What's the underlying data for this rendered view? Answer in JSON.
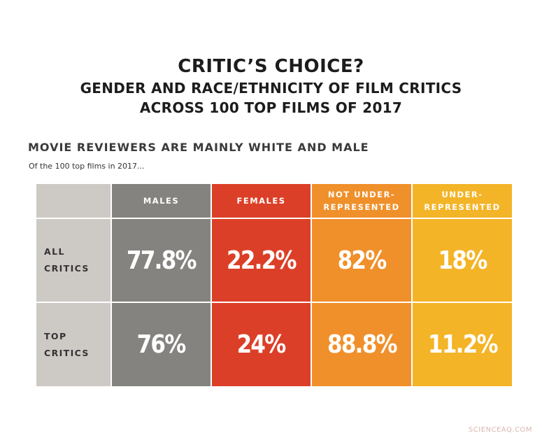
{
  "title": "CRITIC’S CHOICE?",
  "subtitle_line1": "GENDER AND RACE/ETHNICITY OF FILM CRITICS",
  "subtitle_line2": "ACROSS 100 TOP FILMS OF 2017",
  "section_heading": "MOVIE REVIEWERS ARE MAINLY WHITE AND MALE",
  "caption": "Of the 100 top films in 2017...",
  "watermark": "SCIENCEAQ.COM",
  "colors": {
    "label_bg": "#cdc9c5",
    "males": "#858380",
    "females": "#dc3f27",
    "not_underrepresented": "#f0902a",
    "underrepresented": "#f4b427"
  },
  "chart_data": {
    "type": "table",
    "title": "CRITIC’S CHOICE?",
    "columns": [
      {
        "key": "males",
        "line1": "MALES",
        "line2": ""
      },
      {
        "key": "females",
        "line1": "FEMALES",
        "line2": ""
      },
      {
        "key": "not_underrepresented",
        "line1": "NOT UNDER-",
        "line2": "REPRESENTED"
      },
      {
        "key": "underrepresented",
        "line1": "UNDER-",
        "line2": "REPRESENTED"
      }
    ],
    "rows": [
      {
        "line1": "ALL",
        "line2": "CRITICS",
        "values": [
          "77.8%",
          "22.2%",
          "82%",
          "18%"
        ]
      },
      {
        "line1": "TOP",
        "line2": "CRITICS",
        "values": [
          "76%",
          "24%",
          "88.8%",
          "11.2%"
        ]
      }
    ]
  }
}
